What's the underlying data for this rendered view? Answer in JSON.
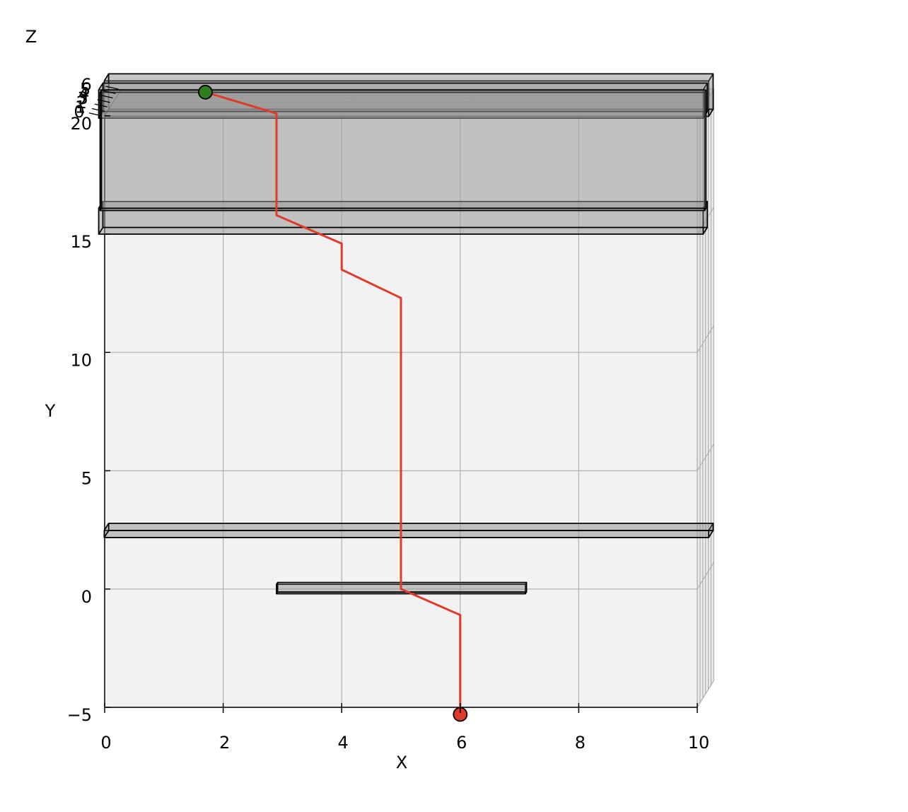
{
  "chart_data": {
    "type": "line3d",
    "xlabel": "X",
    "ylabel": "Y",
    "zlabel": "Z",
    "xlim": [
      0,
      10
    ],
    "ylim": [
      -5,
      20
    ],
    "zlim": [
      0,
      6
    ],
    "x_ticks": [
      "0",
      "2",
      "4",
      "6",
      "8",
      "10"
    ],
    "y_ticks": [
      "−5",
      "0",
      "5",
      "10",
      "15",
      "20"
    ],
    "z_ticks": [
      "0",
      "1",
      "2",
      "3",
      "4",
      "5",
      "6"
    ],
    "grid": true,
    "colors": {
      "pane": "#f2f2f2",
      "grid": "#b0b0b0",
      "path": "#e03a2a",
      "start_marker": "#2f7d1e",
      "end_marker": "#e03a2a",
      "box_fill": "#999999",
      "box_edge": "#000000"
    },
    "path": {
      "x": [
        6.0,
        6.0,
        5.0,
        5.0,
        4.0,
        4.0,
        2.9,
        2.9,
        1.7
      ],
      "y": [
        -5.3,
        -1.1,
        0.0,
        12.3,
        13.5,
        14.6,
        15.8,
        20.1,
        21.0
      ],
      "z": [
        0.0,
        0.0,
        0.0,
        0.0,
        0.0,
        0.0,
        0.0,
        0.0,
        0.0
      ]
    },
    "markers": [
      {
        "x": 1.7,
        "y": 21.0,
        "z": 0.0
      },
      {
        "x": 6.0,
        "y": -5.3,
        "z": 0.0
      }
    ],
    "boxes": [
      {
        "x": [
          -0.1,
          10.1
        ],
        "y": [
          19.6,
          21.1
        ],
        "z": [
          2.0,
          3.6
        ]
      },
      {
        "x": [
          -0.1,
          10.1
        ],
        "y": [
          15.0,
          16.1
        ],
        "z": [
          0.0,
          1.5
        ]
      },
      {
        "x": [
          -0.1,
          10.1
        ],
        "y": [
          19.9,
          21.1
        ],
        "z": [
          0.0,
          1.5
        ]
      },
      {
        "x": [
          -0.1,
          10.1
        ],
        "y": [
          15.9,
          20.9
        ],
        "z": [
          0.5,
          1.0
        ]
      },
      {
        "x": [
          -0.1,
          10.1
        ],
        "y": [
          1.8,
          2.1
        ],
        "z": [
          2.0,
          3.6
        ]
      },
      {
        "x": [
          2.9,
          7.1
        ],
        "y": [
          -0.2,
          0.2
        ],
        "z": [
          0.0,
          0.4
        ]
      }
    ]
  }
}
